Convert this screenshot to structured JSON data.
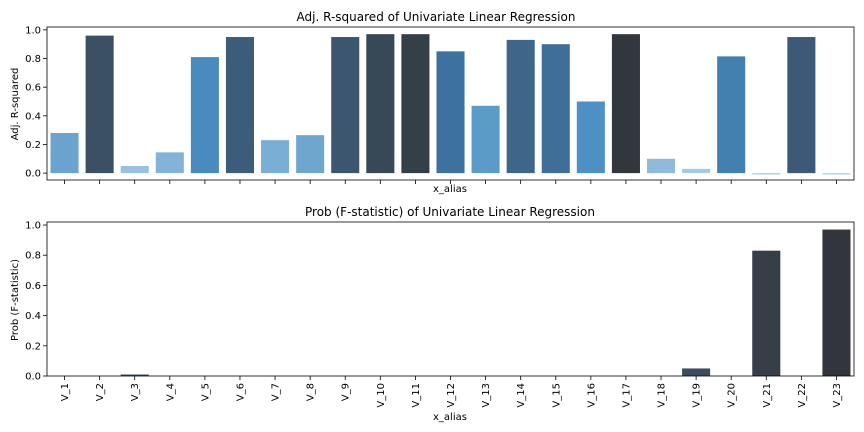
{
  "chart_data": [
    {
      "type": "bar",
      "title": "Adj. R-squared of Univariate Linear Regression",
      "xlabel": "x_alias",
      "ylabel": "Adj. R-squared",
      "categories": [
        "V_1",
        "V_2",
        "V_3",
        "V_4",
        "V_5",
        "V_6",
        "V_7",
        "V_8",
        "V_9",
        "V_10",
        "V_11",
        "V_12",
        "V_13",
        "V_14",
        "V_15",
        "V_16",
        "V_17",
        "V_18",
        "V_19",
        "V_20",
        "V_21",
        "V_22",
        "V_23"
      ],
      "values": [
        0.28,
        0.96,
        0.05,
        0.145,
        0.81,
        0.95,
        0.23,
        0.265,
        0.95,
        0.97,
        0.97,
        0.85,
        0.47,
        0.93,
        0.9,
        0.5,
        0.97,
        0.1,
        0.03,
        0.815,
        -0.01,
        0.95,
        -0.01
      ],
      "colors": [
        "#6aa3ce",
        "#3b5064",
        "#98c2e0",
        "#83b3d8",
        "#4a8bbf",
        "#3c5d7a",
        "#7aaed4",
        "#6fa6cd",
        "#3d5670",
        "#374856",
        "#343f48",
        "#3d72a0",
        "#5b9bc8",
        "#3d6689",
        "#3f6f98",
        "#4d90c4",
        "#32373d",
        "#8ebbdc",
        "#a3c9e3",
        "#4380b0",
        "#afd0e7",
        "#3c5a77",
        "#b5d4ea"
      ],
      "ylim": [
        -0.048,
        1.02
      ],
      "yticks": [
        "0.0",
        "0.2",
        "0.4",
        "0.6",
        "0.8",
        "1.0"
      ],
      "show_xticklabels": false,
      "grid": false
    },
    {
      "type": "bar",
      "title": "Prob (F-statistic) of Univariate Linear Regression",
      "xlabel": "x_alias",
      "ylabel": "Prob (F-statistic)",
      "categories": [
        "V_1",
        "V_2",
        "V_3",
        "V_4",
        "V_5",
        "V_6",
        "V_7",
        "V_8",
        "V_9",
        "V_10",
        "V_11",
        "V_12",
        "V_13",
        "V_14",
        "V_15",
        "V_16",
        "V_17",
        "V_18",
        "V_19",
        "V_20",
        "V_21",
        "V_22",
        "V_23"
      ],
      "values": [
        0.0,
        0.0,
        0.01,
        0.0,
        0.0,
        0.0,
        0.0,
        0.0,
        0.0,
        0.0,
        0.0,
        0.0,
        0.0,
        0.0,
        0.0,
        0.0,
        0.0,
        0.0,
        0.05,
        0.0,
        0.83,
        0.0,
        0.97
      ],
      "colors": [
        "#6aa3ce",
        "#3b5064",
        "#3d5266",
        "#83b3d8",
        "#4a8bbf",
        "#3c5d7a",
        "#7aaed4",
        "#6fa6cd",
        "#3d5670",
        "#374856",
        "#343f48",
        "#3d72a0",
        "#5b9bc8",
        "#3d6689",
        "#3f6f98",
        "#4d90c4",
        "#32373d",
        "#8ebbdc",
        "#3b4d5f",
        "#4380b0",
        "#363f48",
        "#3c5a77",
        "#32353b"
      ],
      "ylim": [
        0,
        1.02
      ],
      "yticks": [
        "0.0",
        "0.2",
        "0.4",
        "0.6",
        "0.8",
        "1.0"
      ],
      "show_xticklabels": true,
      "grid": false
    }
  ]
}
